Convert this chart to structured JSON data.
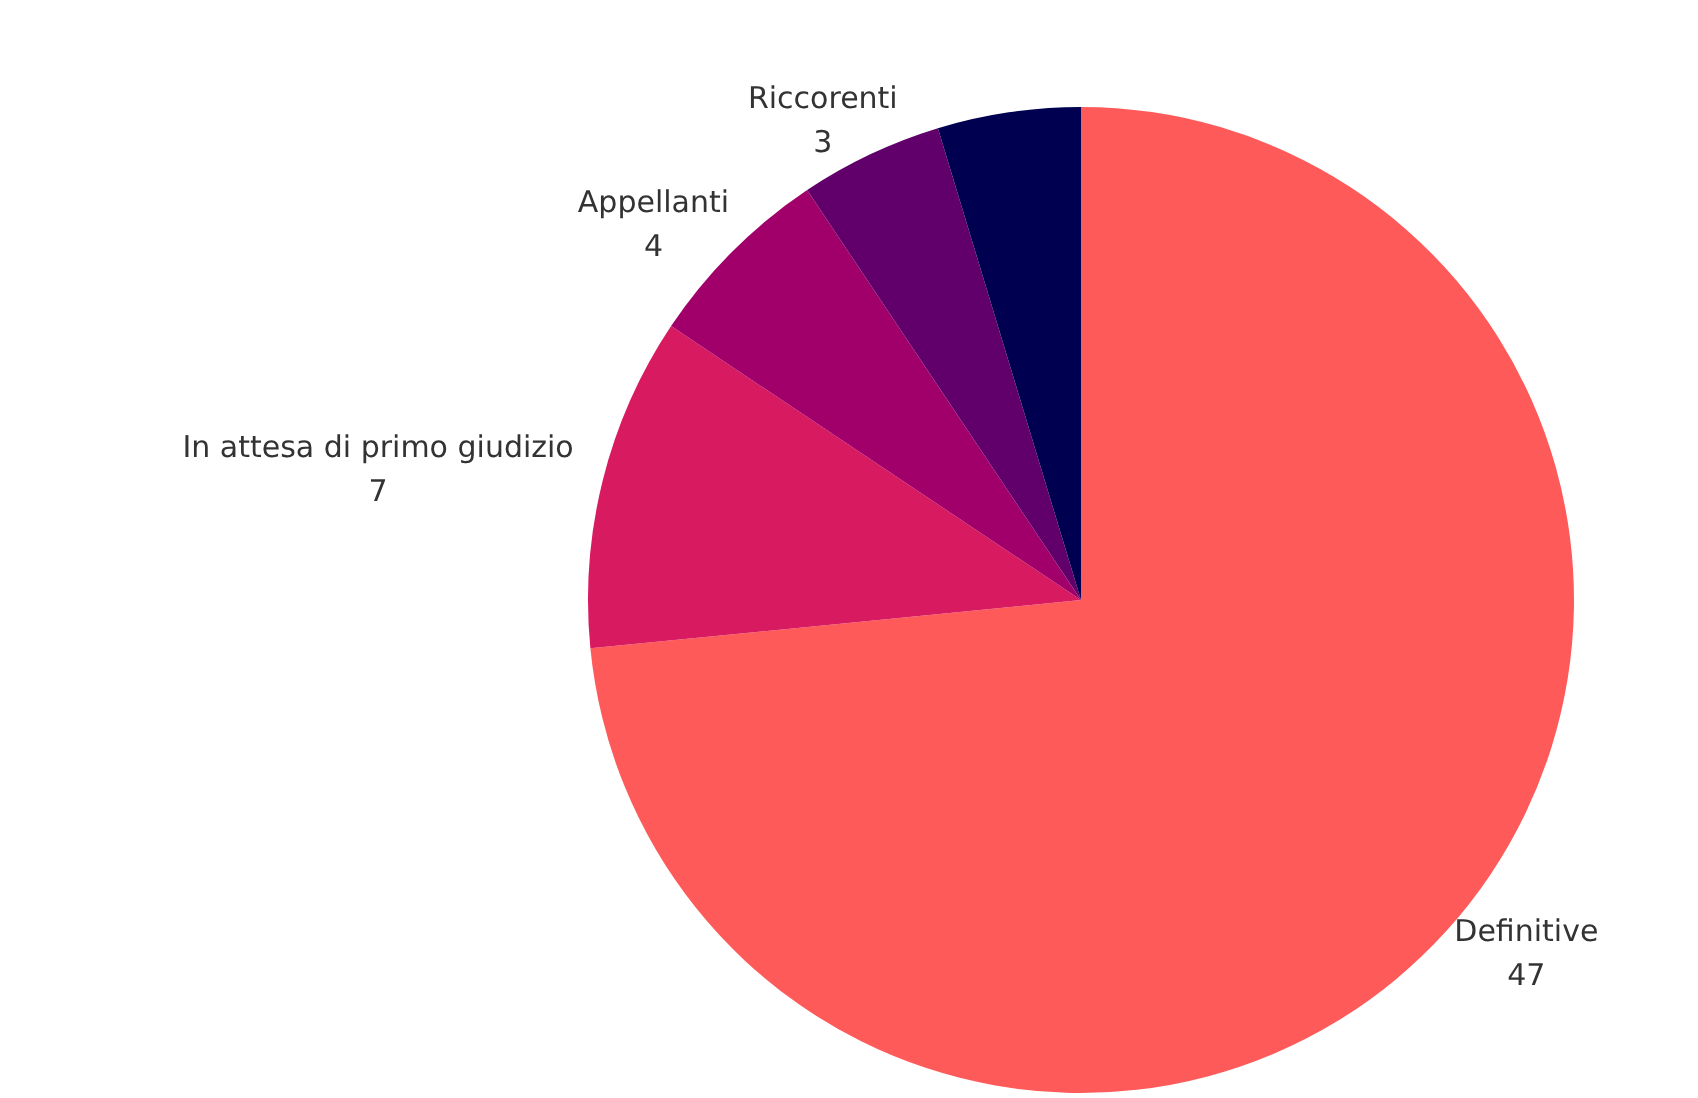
{
  "chart_data": {
    "type": "pie",
    "categories": [
      "Definitive",
      "In attesa di primo giudizio",
      "Appellanti",
      "Riccorenti",
      null
    ],
    "values": [
      47,
      7,
      4,
      3,
      3
    ],
    "value_labels": [
      "47",
      "7",
      "4",
      "3",
      null
    ],
    "colors": [
      "#ff5a5a",
      "#d81a60",
      "#a1006b",
      "#62006b",
      "#000050"
    ],
    "legend": false
  }
}
